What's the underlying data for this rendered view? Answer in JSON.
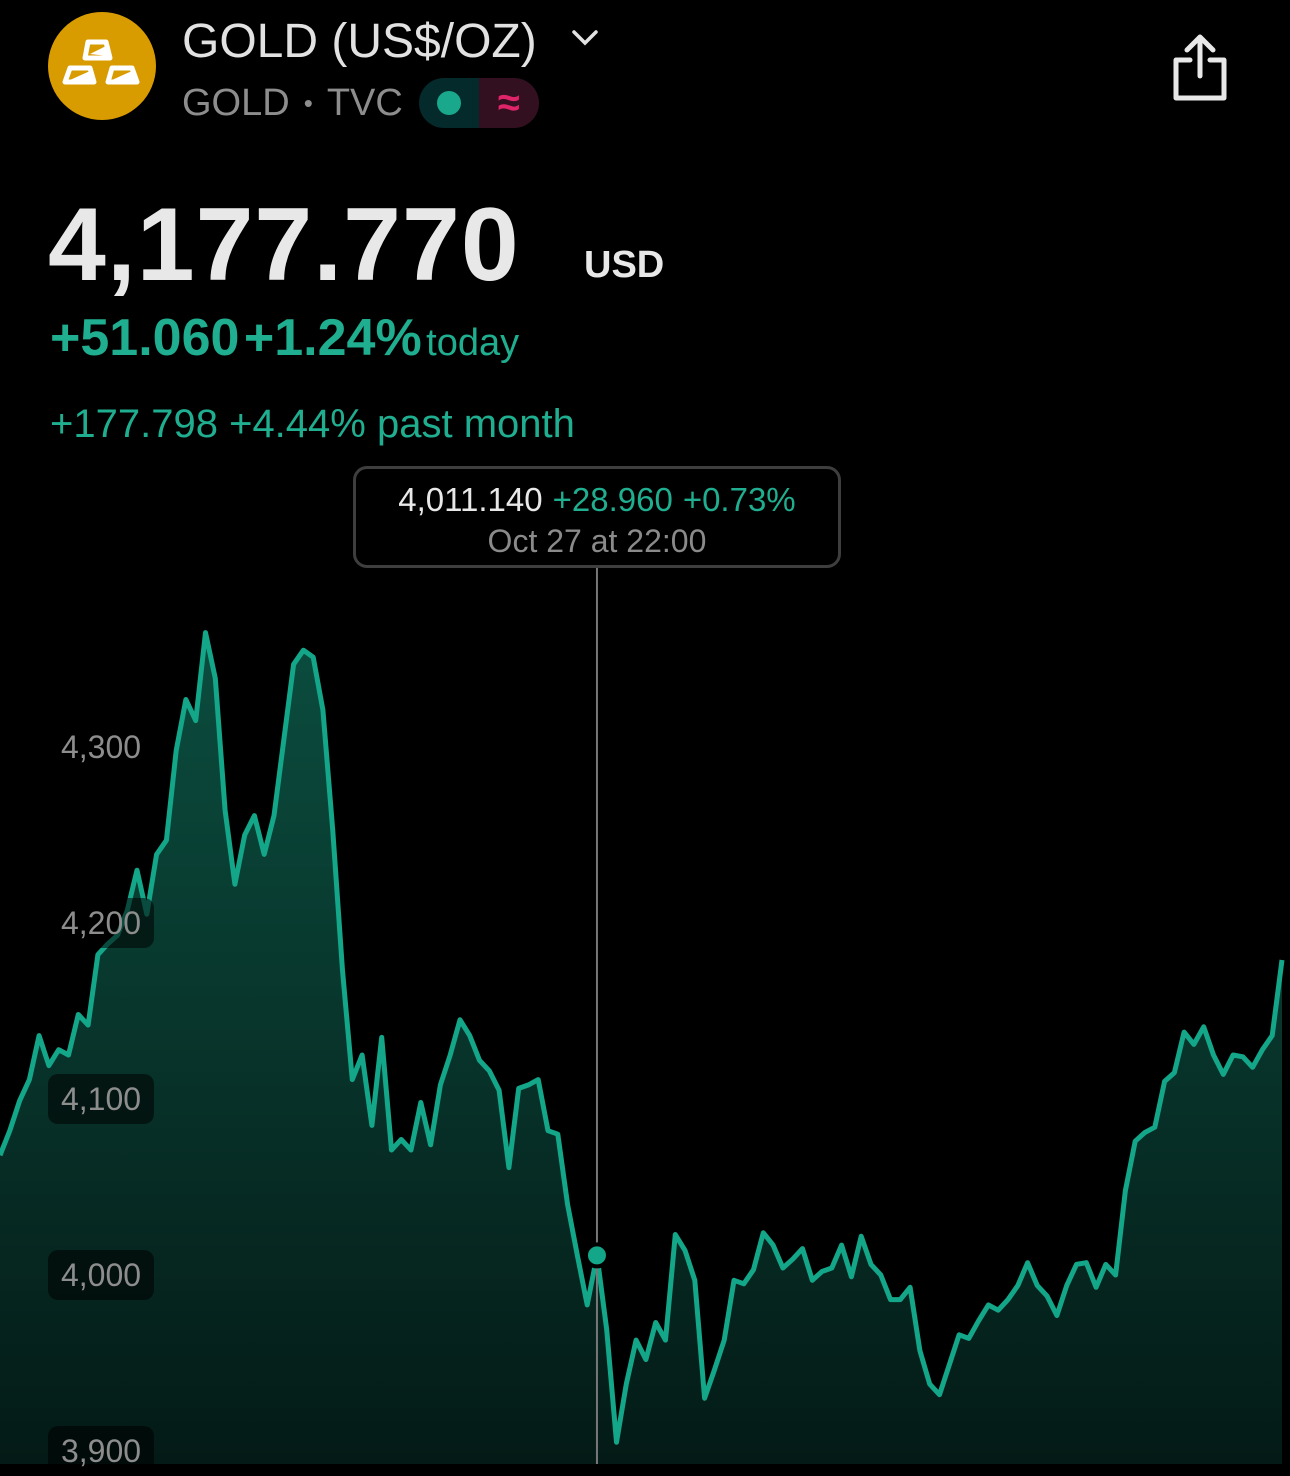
{
  "header": {
    "title": "GOLD (US$/OZ)",
    "symbol": "GOLD",
    "separator": "•",
    "exchange": "TVC",
    "badge_icons": [
      "status-dot-icon",
      "approx-icon"
    ],
    "badge_approx_glyph": "≈",
    "logo_icon": "gold-bars-icon",
    "share_icon": "share-icon"
  },
  "quote": {
    "price": "4,177.770",
    "currency": "USD",
    "today_change": "+51.060",
    "today_percent": "+1.24%",
    "today_label": "today",
    "month_change": "+177.798",
    "month_percent": "+4.44%",
    "month_label": "past month"
  },
  "tooltip": {
    "value": "4,011.140",
    "change": "+28.960",
    "percent": "+0.73%",
    "time": "Oct 27 at 22:00"
  },
  "colors": {
    "accent": "#1fae8f",
    "line": "#14a689",
    "logo": "#d99c00",
    "badge_red": "#e0246a"
  },
  "chart_data": {
    "type": "area",
    "y_ticks": [
      "4,300",
      "4,200",
      "4,100",
      "4,000",
      "3,900"
    ],
    "y_tick_values": [
      4300,
      4200,
      4100,
      4000,
      3900
    ],
    "grid": false,
    "cursor_index": 61,
    "cursor_value": 4011.14,
    "values": [
      4068,
      4082,
      4099,
      4111,
      4136,
      4119,
      4128,
      4125,
      4148,
      4142,
      4182,
      4188,
      4193,
      4207,
      4230,
      4205,
      4239,
      4247,
      4298,
      4327,
      4315,
      4365,
      4339,
      4264,
      4222,
      4250,
      4261,
      4239,
      4261,
      4304,
      4347,
      4355,
      4351,
      4321,
      4253,
      4173,
      4111,
      4125,
      4085,
      4135,
      4071,
      4077,
      4071,
      4098,
      4074,
      4108,
      4125,
      4145,
      4136,
      4122,
      4116,
      4105,
      4061,
      4106,
      4108,
      4111,
      4082,
      4080,
      4040,
      4011,
      3983,
      4011,
      3969,
      3905,
      3938,
      3963,
      3952,
      3973,
      3963,
      4023,
      4014,
      3997,
      3930,
      3946,
      3963,
      3997,
      3995,
      4003,
      4024,
      4017,
      4004,
      4009,
      4015,
      3997,
      4002,
      4004,
      4017,
      3999,
      4022,
      4006,
      4000,
      3986,
      3986,
      3993,
      3957,
      3938,
      3932,
      3949,
      3966,
      3964,
      3974,
      3983,
      3980,
      3986,
      3994,
      4007,
      3994,
      3988,
      3977,
      3994,
      4006,
      4007,
      3993,
      4006,
      4000,
      4048,
      4076,
      4081,
      4084,
      4110,
      4115,
      4138,
      4131,
      4141,
      4125,
      4114,
      4125,
      4124,
      4118,
      4128,
      4136,
      4179
    ]
  }
}
